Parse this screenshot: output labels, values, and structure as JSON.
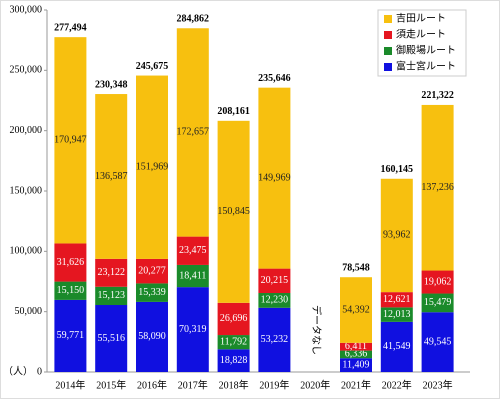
{
  "chart_data": {
    "type": "stacked-bar",
    "categories": [
      "2014年",
      "2015年",
      "2016年",
      "2017年",
      "2018年",
      "2019年",
      "2020年",
      "2021年",
      "2022年",
      "2023年"
    ],
    "series": [
      {
        "name": "富士宮ルート",
        "color": "#1010e0",
        "values": [
          59771,
          55516,
          58090,
          70319,
          18828,
          53232,
          null,
          11409,
          41549,
          49545
        ],
        "value_labels": [
          "59,771",
          "55,516",
          "58,090",
          "70,319",
          "18,828",
          "53,232",
          null,
          "11,409",
          "41,549",
          "49,545"
        ]
      },
      {
        "name": "御殿場ルート",
        "color": "#1a8a2a",
        "values": [
          15150,
          15123,
          15339,
          18411,
          11792,
          12230,
          null,
          6336,
          12013,
          15479
        ],
        "value_labels": [
          "15,150",
          "15,123",
          "15,339",
          "18,411",
          "11,792",
          "12,230",
          null,
          "6,336",
          "12,013",
          "15,479"
        ]
      },
      {
        "name": "須走ルート",
        "color": "#e51620",
        "values": [
          31626,
          23122,
          20277,
          23475,
          26696,
          20215,
          null,
          6411,
          12621,
          19062
        ],
        "value_labels": [
          "31,626",
          "23,122",
          "20,277",
          "23,475",
          "26,696",
          "20,215",
          null,
          "6,411",
          "12,621",
          "19,062"
        ]
      },
      {
        "name": "吉田ルート",
        "color": "#f7c00f",
        "values": [
          170947,
          136587,
          151969,
          172657,
          150845,
          149969,
          null,
          54392,
          93962,
          137236
        ],
        "value_labels": [
          "170,947",
          "136,587",
          "151,969",
          "172,657",
          "150,845",
          "149,969",
          null,
          "54,392",
          "93,962",
          "137,236"
        ]
      }
    ],
    "totals": [
      277494,
      230348,
      245675,
      284862,
      208161,
      235646,
      null,
      78548,
      160145,
      221322
    ],
    "total_labels": [
      "277,494",
      "230,348",
      "245,675",
      "284,862",
      "208,161",
      "235,646",
      null,
      "78,548",
      "160,145",
      "221,322"
    ],
    "annotation": "データなし",
    "y_label": "（人）",
    "ylim": [
      0,
      300000
    ],
    "yticks": [
      0,
      {
        "value": 50000,
        "label": "50,000"
      },
      {
        "value": 100000,
        "label": "100,000"
      },
      {
        "value": 150000,
        "label": "150,000"
      },
      {
        "value": 200000,
        "label": "200,000"
      },
      {
        "value": 250000,
        "label": "250,000"
      },
      {
        "value": 300000,
        "label": "300,000"
      }
    ],
    "grid": false,
    "legend": "top-right"
  }
}
